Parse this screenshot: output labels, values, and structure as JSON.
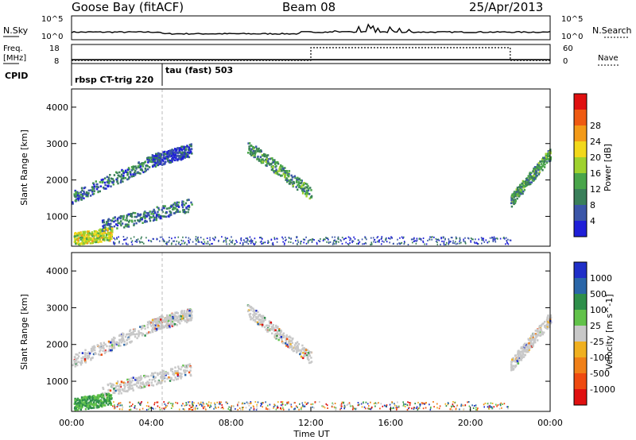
{
  "header": {
    "station": "Goose Bay (fitACF)",
    "beam": "Beam 08",
    "date": "25/Apr/2013"
  },
  "top_panels": {
    "nsky_label": "N.Sky",
    "nsearch_label": "N.Search",
    "nsky_ticks": [
      "10^5",
      "10^0"
    ],
    "nsearch_ticks": [
      "10^5",
      "10^0"
    ],
    "freq_label_line1": "Freq.",
    "freq_label_line2": "[MHz]",
    "freq_ticks": [
      "18",
      "8"
    ],
    "nave_label": "Nave",
    "nave_ticks": [
      "60",
      "0"
    ],
    "cpid_label": "CPID",
    "cpid_programs": [
      "rbsp CT-trig 220",
      "tau (fast) 503"
    ]
  },
  "xaxis": {
    "label": "Time UT",
    "ticks": [
      "00:00",
      "04:00",
      "08:00",
      "12:00",
      "16:00",
      "20:00",
      "00:00"
    ]
  },
  "power_panel": {
    "ylabel": "Slant Range [km]",
    "yticks": [
      "1000",
      "2000",
      "3000",
      "4000"
    ],
    "colorbar_label": "Power [dB]",
    "colorbar_ticks": [
      "4",
      "8",
      "12",
      "16",
      "20",
      "24",
      "28"
    ],
    "colors": [
      "#1f1fd8",
      "#3b56a8",
      "#3a7f5a",
      "#49a54a",
      "#9fd22e",
      "#f2d81a",
      "#f39a18",
      "#ef5a12",
      "#e01010"
    ]
  },
  "velocity_panel": {
    "ylabel": "Slant Range [km]",
    "yticks": [
      "1000",
      "2000",
      "3000",
      "4000"
    ],
    "colorbar_label": "Velocity [m s^-1]",
    "colorbar_ticks": [
      "1000",
      "500",
      "100",
      "25",
      "-25",
      "-100",
      "-500",
      "-1000"
    ],
    "colors": [
      "#1f2fc8",
      "#2a66a8",
      "#2e8f4a",
      "#62c24a",
      "#c8c8c8",
      "#f0b020",
      "#f08018",
      "#ef4a10",
      "#e01010"
    ]
  },
  "chart_data": {
    "type": "heatmap",
    "x_unit": "hours UT",
    "x_range": [
      0,
      24
    ],
    "y_range_km": [
      180,
      4500
    ],
    "power_features": [
      {
        "t0": 0.0,
        "t1": 4.5,
        "r0": 1500,
        "r1": 2600,
        "level": 12
      },
      {
        "t0": 4.0,
        "t1": 6.0,
        "r0": 2500,
        "r1": 2800,
        "level": 8
      },
      {
        "t0": 8.8,
        "t1": 12.0,
        "r0": 2900,
        "r1": 1600,
        "level": 14
      },
      {
        "t0": 1.5,
        "t1": 6.0,
        "r0": 700,
        "r1": 1300,
        "level": 10
      },
      {
        "t0": 0.1,
        "t1": 2.0,
        "r0": 350,
        "r1": 500,
        "level": 24
      },
      {
        "t0": 22.0,
        "t1": 24.0,
        "r0": 1400,
        "r1": 2700,
        "level": 16
      }
    ],
    "nsky_median_log": 1.6,
    "frequency_mhz": [
      {
        "t0": 0,
        "t1": 24,
        "value": 10
      }
    ],
    "nave": [
      {
        "t0": 0,
        "t1": 12,
        "value": 10
      },
      {
        "t0": 12,
        "t1": 22,
        "value": 50
      },
      {
        "t0": 22,
        "t1": 24,
        "value": 10
      }
    ],
    "cpid_change_hour": 4.5
  }
}
